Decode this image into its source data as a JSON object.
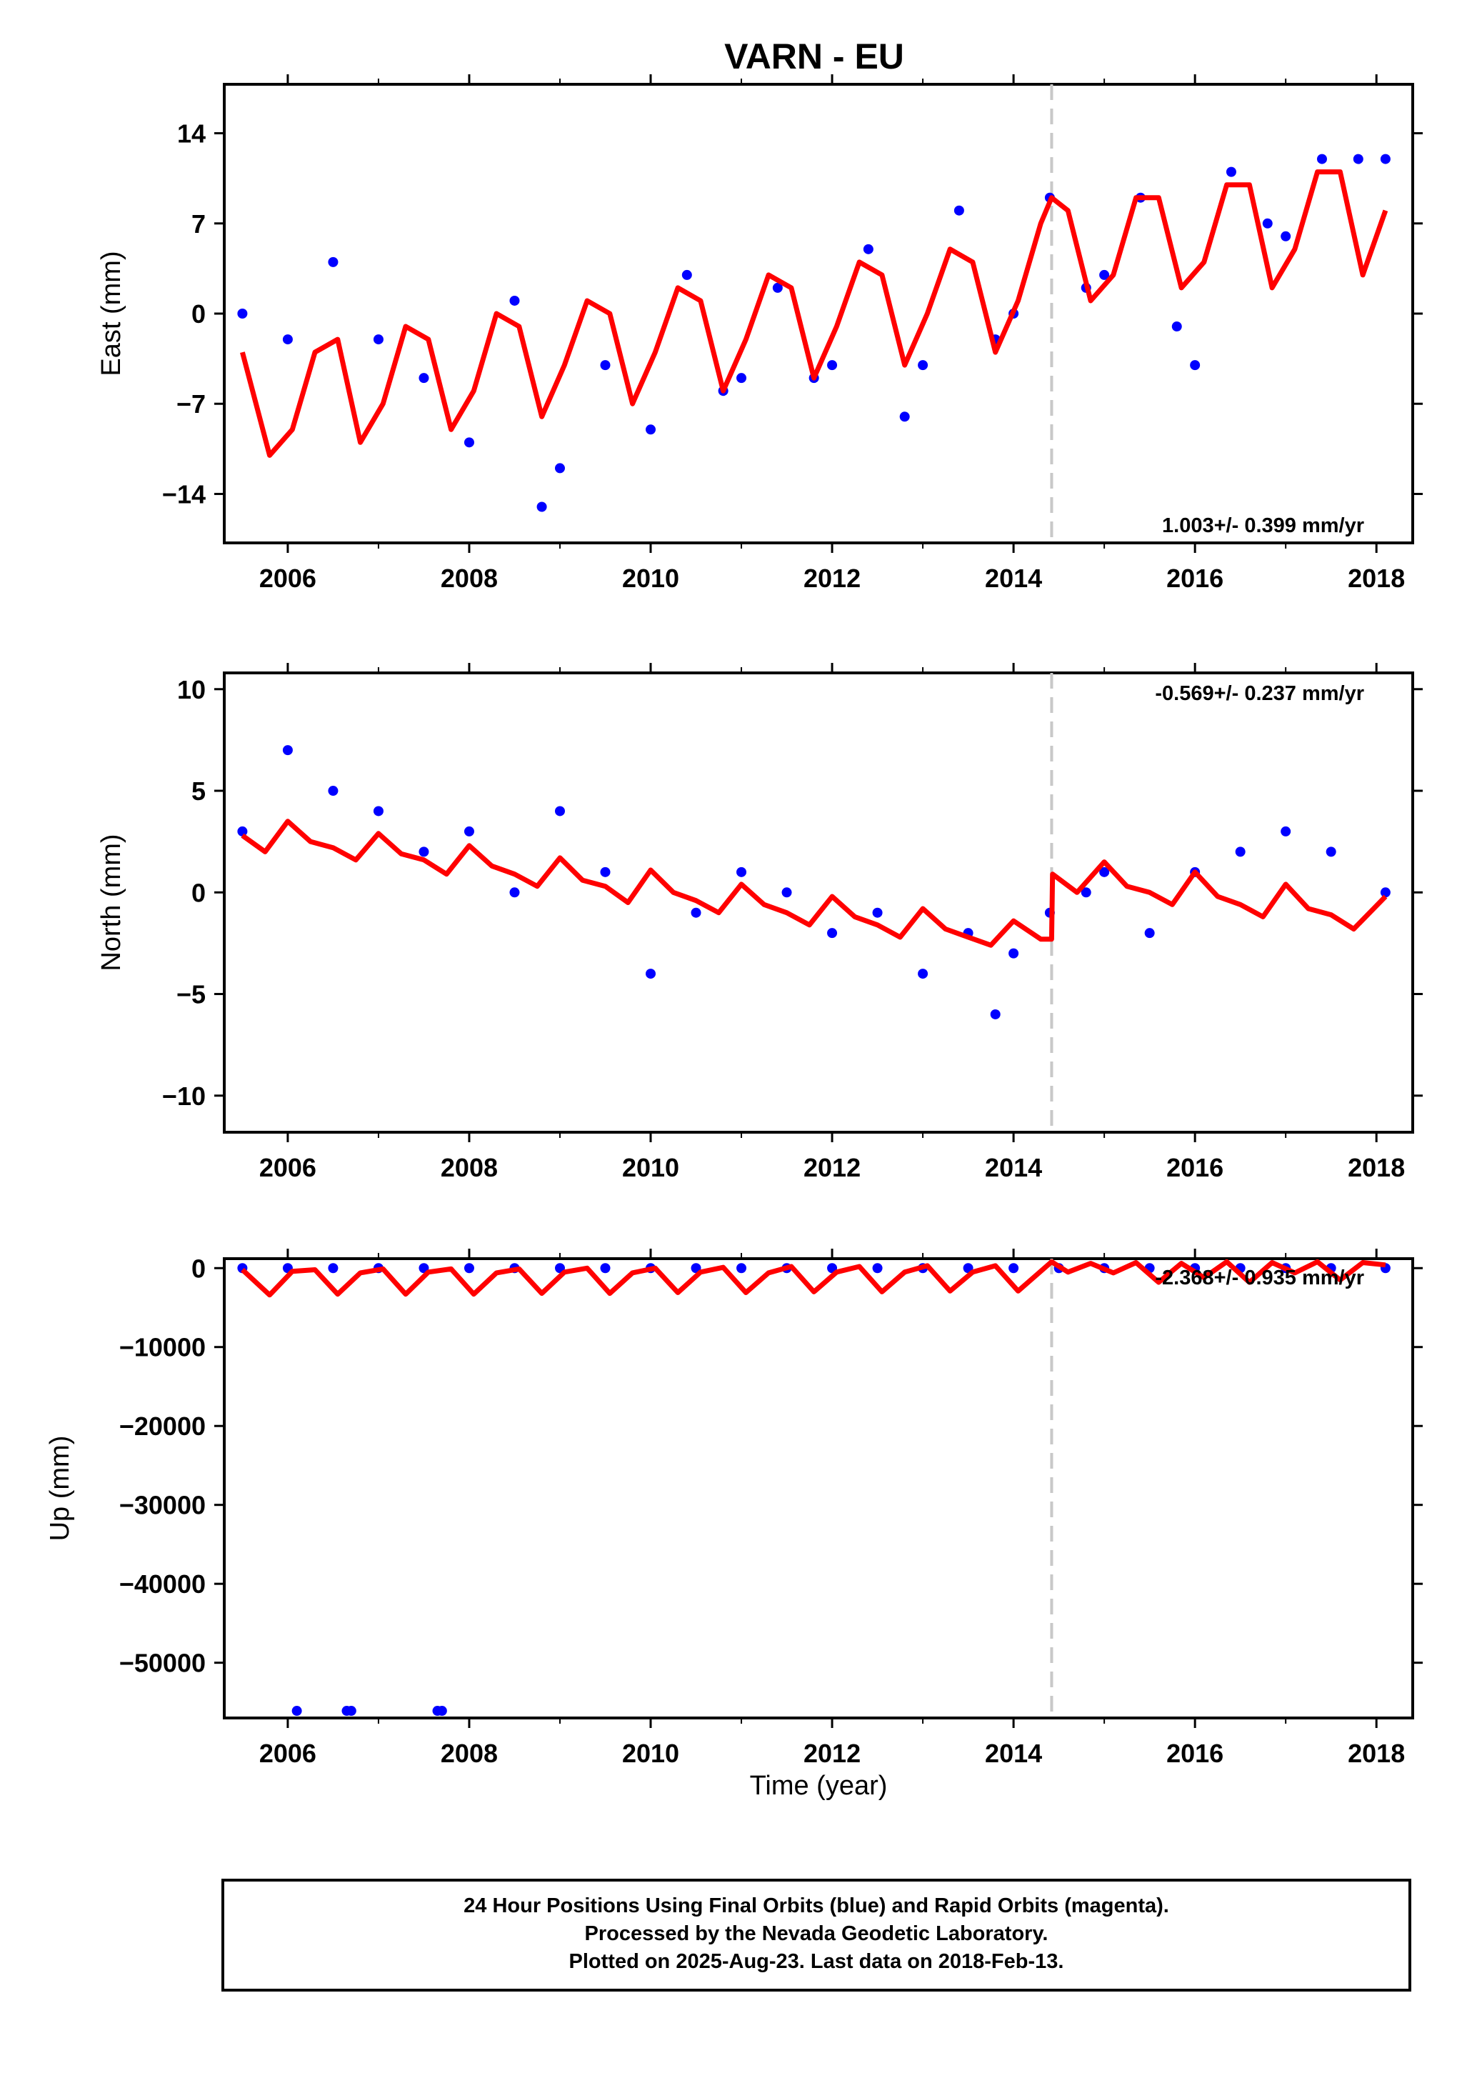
{
  "title": "VARN - EU",
  "colors": {
    "data": "#0000ff",
    "model": "#ff0000",
    "offset_line": "#c8c8c8",
    "axes": "#000000"
  },
  "offset_year": 2014.42,
  "footer": {
    "line1": "24 Hour Positions Using Final Orbits (blue) and Rapid Orbits (magenta).",
    "line2": "Processed by the Nevada Geodetic Laboratory.",
    "line3": "Plotted on 2025-Aug-23. Last data on 2018-Feb-13."
  },
  "chart_data": [
    {
      "type": "scatter",
      "name": "east",
      "ylabel": "East (mm)",
      "xlim": [
        2005.3,
        2018.4
      ],
      "ylim": [
        -17.8,
        17.8
      ],
      "xticks": [
        2006,
        2008,
        2010,
        2012,
        2014,
        2016,
        2018
      ],
      "yticks": [
        14,
        7,
        0,
        -7,
        -14
      ],
      "ytick_labels": [
        "14",
        "7",
        "0",
        "−7",
        "−14"
      ],
      "rate": "1.003+/- 0.399 mm/yr",
      "data_x": [
        2005.5,
        2006.0,
        2006.5,
        2007.0,
        2007.5,
        2008.0,
        2008.5,
        2008.8,
        2009.0,
        2009.5,
        2010.0,
        2010.4,
        2010.8,
        2011.0,
        2011.4,
        2011.8,
        2012.0,
        2012.4,
        2012.8,
        2013.0,
        2013.4,
        2013.8,
        2014.0,
        2014.4,
        2014.8,
        2015.0,
        2015.4,
        2015.8,
        2016.0,
        2016.4,
        2016.8,
        2017.0,
        2017.4,
        2017.8,
        2018.1
      ],
      "data_y": [
        0,
        -2,
        4,
        -2,
        -5,
        -10,
        1,
        -15,
        -12,
        -4,
        -9,
        3,
        -6,
        -5,
        2,
        -5,
        -4,
        5,
        -8,
        -4,
        8,
        -2,
        0,
        9,
        2,
        3,
        9,
        -1,
        -4,
        11,
        7,
        6,
        12,
        12,
        12
      ],
      "model_x": [
        2005.5,
        2005.8,
        2006.05,
        2006.3,
        2006.55,
        2006.8,
        2007.05,
        2007.3,
        2007.55,
        2007.8,
        2008.05,
        2008.3,
        2008.55,
        2008.8,
        2009.05,
        2009.3,
        2009.55,
        2009.8,
        2010.05,
        2010.3,
        2010.55,
        2010.8,
        2011.05,
        2011.3,
        2011.55,
        2011.8,
        2012.05,
        2012.3,
        2012.55,
        2012.8,
        2013.05,
        2013.3,
        2013.55,
        2013.8,
        2014.05,
        2014.3,
        2014.42,
        2014.6,
        2014.85,
        2015.1,
        2015.35,
        2015.6,
        2015.85,
        2016.1,
        2016.35,
        2016.6,
        2016.85,
        2017.1,
        2017.35,
        2017.6,
        2017.85,
        2018.1
      ],
      "model_y": [
        -3,
        -11,
        -9,
        -3,
        -2,
        -10,
        -7,
        -1,
        -2,
        -9,
        -6,
        0,
        -1,
        -8,
        -4,
        1,
        0,
        -7,
        -3,
        2,
        1,
        -6,
        -2,
        3,
        2,
        -5,
        -1,
        4,
        3,
        -4,
        0,
        5,
        4,
        -3,
        1,
        7,
        9,
        8,
        1,
        3,
        9,
        9,
        2,
        4,
        10,
        10,
        2,
        5,
        11,
        11,
        3,
        8
      ]
    },
    {
      "type": "scatter",
      "name": "north",
      "ylabel": "North (mm)",
      "xlim": [
        2005.3,
        2018.4
      ],
      "ylim": [
        -11.8,
        10.8
      ],
      "xticks": [
        2006,
        2008,
        2010,
        2012,
        2014,
        2016,
        2018
      ],
      "yticks": [
        10,
        5,
        0,
        -5,
        -10
      ],
      "ytick_labels": [
        "10",
        "5",
        "0",
        "−5",
        "−10"
      ],
      "rate": "-0.569+/- 0.237 mm/yr",
      "data_x": [
        2005.5,
        2006.0,
        2006.5,
        2007.0,
        2007.5,
        2008.0,
        2008.5,
        2009.0,
        2009.5,
        2010.0,
        2010.5,
        2011.0,
        2011.5,
        2012.0,
        2012.5,
        2013.0,
        2013.5,
        2013.8,
        2014.0,
        2014.4,
        2014.8,
        2015.0,
        2015.5,
        2016.0,
        2016.5,
        2017.0,
        2017.5,
        2018.1
      ],
      "data_y": [
        3,
        7,
        5,
        4,
        2,
        3,
        0,
        4,
        1,
        -4,
        -1,
        1,
        0,
        -2,
        -1,
        -4,
        -2,
        -6,
        -3,
        -1,
        0,
        1,
        -2,
        1,
        2,
        3,
        2,
        0
      ],
      "model_x": [
        2005.5,
        2005.75,
        2006.0,
        2006.25,
        2006.5,
        2006.75,
        2007.0,
        2007.25,
        2007.5,
        2007.75,
        2008.0,
        2008.25,
        2008.5,
        2008.75,
        2009.0,
        2009.25,
        2009.5,
        2009.75,
        2010.0,
        2010.25,
        2010.5,
        2010.75,
        2011.0,
        2011.25,
        2011.5,
        2011.75,
        2012.0,
        2012.25,
        2012.5,
        2012.75,
        2013.0,
        2013.25,
        2013.5,
        2013.75,
        2014.0,
        2014.3,
        2014.42,
        2014.43,
        2014.7,
        2015.0,
        2015.25,
        2015.5,
        2015.75,
        2016.0,
        2016.25,
        2016.5,
        2016.75,
        2017.0,
        2017.25,
        2017.5,
        2017.75,
        2018.1
      ],
      "model_y": [
        2.8,
        2.0,
        3.5,
        2.5,
        2.2,
        1.6,
        2.9,
        1.9,
        1.6,
        0.9,
        2.3,
        1.3,
        0.9,
        0.3,
        1.7,
        0.6,
        0.3,
        -0.5,
        1.1,
        0.0,
        -0.4,
        -1.0,
        0.4,
        -0.6,
        -1.0,
        -1.6,
        -0.2,
        -1.2,
        -1.6,
        -2.2,
        -0.8,
        -1.8,
        -2.2,
        -2.6,
        -1.4,
        -2.3,
        -2.3,
        0.9,
        0.0,
        1.5,
        0.3,
        0.0,
        -0.6,
        1.0,
        -0.2,
        -0.6,
        -1.2,
        0.4,
        -0.8,
        -1.1,
        -1.8,
        -0.2
      ]
    },
    {
      "type": "scatter",
      "name": "up",
      "ylabel": "Up (mm)",
      "xlabel": "Time (year)",
      "xlim": [
        2005.3,
        2018.4
      ],
      "ylim": [
        -57000,
        1200
      ],
      "xticks": [
        2006,
        2008,
        2010,
        2012,
        2014,
        2016,
        2018
      ],
      "yticks": [
        0,
        -10000,
        -20000,
        -30000,
        -40000,
        -50000
      ],
      "ytick_labels": [
        "0",
        "−10000",
        "−20000",
        "−30000",
        "−40000",
        "−50000"
      ],
      "rate": "-2.368+/- 0.935 mm/yr",
      "data_x": [
        2005.5,
        2006.0,
        2006.5,
        2007.0,
        2007.5,
        2008.0,
        2008.5,
        2009.0,
        2009.5,
        2010.0,
        2010.5,
        2011.0,
        2011.5,
        2012.0,
        2012.5,
        2013.0,
        2013.5,
        2014.0,
        2014.5,
        2015.0,
        2015.5,
        2016.0,
        2016.5,
        2017.0,
        2017.5,
        2018.1,
        2006.1,
        2006.65,
        2006.7,
        2007.65,
        2007.7
      ],
      "data_y": [
        0,
        0,
        0,
        0,
        0,
        0,
        0,
        0,
        0,
        0,
        0,
        0,
        0,
        0,
        0,
        0,
        0,
        0,
        0,
        0,
        0,
        0,
        0,
        0,
        0,
        0,
        -56100,
        -56100,
        -56100,
        -56100,
        -56100
      ],
      "model_x": [
        2005.5,
        2005.8,
        2006.05,
        2006.3,
        2006.55,
        2006.8,
        2007.05,
        2007.3,
        2007.55,
        2007.8,
        2008.05,
        2008.3,
        2008.55,
        2008.8,
        2009.05,
        2009.3,
        2009.55,
        2009.8,
        2010.05,
        2010.3,
        2010.55,
        2010.8,
        2011.05,
        2011.3,
        2011.55,
        2011.8,
        2012.05,
        2012.3,
        2012.55,
        2012.8,
        2013.05,
        2013.3,
        2013.55,
        2013.8,
        2014.05,
        2014.42,
        2014.6,
        2014.85,
        2015.1,
        2015.35,
        2015.6,
        2015.85,
        2016.1,
        2016.35,
        2016.6,
        2016.85,
        2017.1,
        2017.35,
        2017.6,
        2017.85,
        2018.1
      ],
      "model_y": [
        -200,
        -3400,
        -400,
        -200,
        -3300,
        -600,
        -100,
        -3300,
        -500,
        -100,
        -3300,
        -600,
        -100,
        -3200,
        -500,
        0,
        -3200,
        -600,
        0,
        -3100,
        -500,
        100,
        -3100,
        -600,
        200,
        -3000,
        -500,
        200,
        -3000,
        -500,
        300,
        -2900,
        -500,
        300,
        -2900,
        800,
        -500,
        600,
        -600,
        700,
        -1800,
        600,
        -1200,
        800,
        -1800,
        700,
        -600,
        800,
        -1500,
        700,
        400
      ]
    }
  ]
}
